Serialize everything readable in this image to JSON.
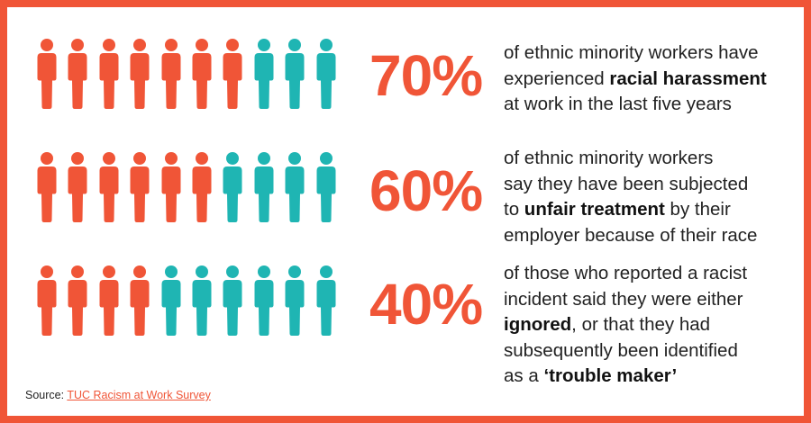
{
  "colors": {
    "accent": "#f05537",
    "secondary": "#1fb5b3",
    "text": "#222222"
  },
  "icons": {
    "person": "person-icon"
  },
  "chart_data": {
    "type": "pictogram",
    "icons_per_row": 10,
    "rows": [
      {
        "percent_label": "70%",
        "value": 70,
        "highlighted_icons": 7,
        "text": [
          "of ethnic minority workers have",
          "experienced ",
          "racial harassment",
          "at work in the last five years"
        ]
      },
      {
        "percent_label": "60%",
        "value": 60,
        "highlighted_icons": 6,
        "text": [
          "of ethnic minority workers",
          "say they have been subjected",
          "to ",
          "unfair treatment",
          " by their",
          "employer because of their race"
        ]
      },
      {
        "percent_label": "40%",
        "value": 40,
        "highlighted_icons": 4,
        "text": [
          "of those who reported a racist",
          "incident said they were either",
          "ignored",
          ", or that they had",
          "subsequently been identified",
          "as a ",
          "‘trouble maker’"
        ]
      }
    ]
  },
  "source": {
    "label": "Source: ",
    "link_text": "TUC Racism at Work Survey"
  }
}
